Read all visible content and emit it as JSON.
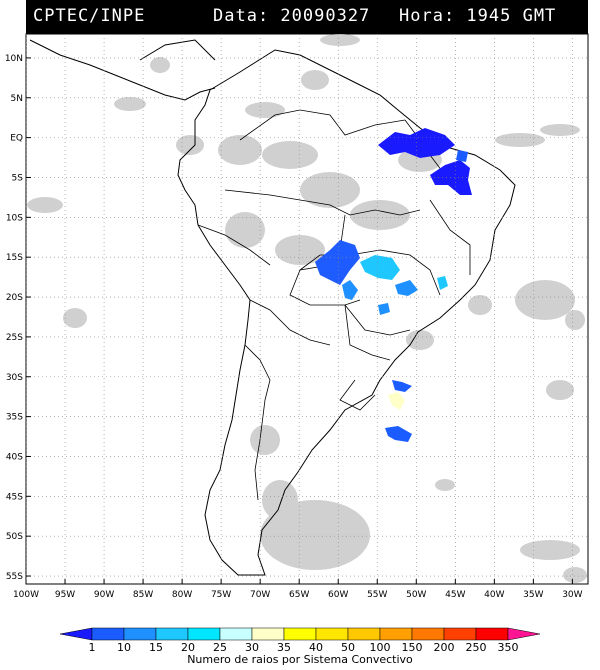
{
  "header": {
    "source": "CPTEC/INPE",
    "date_label": "Data: 20090327",
    "time_label": "Hora: 1945 GMT"
  },
  "axes": {
    "lat_ticks": [
      "10N",
      "5N",
      "EQ",
      "5S",
      "10S",
      "15S",
      "20S",
      "25S",
      "30S",
      "35S",
      "40S",
      "45S",
      "50S",
      "55S"
    ],
    "lon_ticks": [
      "100W",
      "95W",
      "90W",
      "85W",
      "80W",
      "75W",
      "70W",
      "65W",
      "60W",
      "55W",
      "50W",
      "45W",
      "40W",
      "35W",
      "30W"
    ]
  },
  "colorbar": {
    "title": "Numero de raios por Sistema Convectivo",
    "labels": [
      "1",
      "10",
      "15",
      "20",
      "25",
      "30",
      "35",
      "40",
      "50",
      "100",
      "150",
      "200",
      "250",
      "350"
    ],
    "colors": [
      "#1a1aff",
      "#1a5cff",
      "#1e90ff",
      "#1ec8ff",
      "#00e6ff",
      "#c8ffff",
      "#ffffc8",
      "#ffff00",
      "#ffe600",
      "#ffc800",
      "#ffa000",
      "#ff7800",
      "#ff4000",
      "#ff0000",
      "#ff1493"
    ]
  },
  "map": {
    "lat_range": [
      -56,
      13
    ],
    "lon_range": [
      -100,
      -28
    ],
    "land_color": "#ffffff",
    "cloud_color": "#c8c8c8",
    "border_color": "#000000"
  }
}
